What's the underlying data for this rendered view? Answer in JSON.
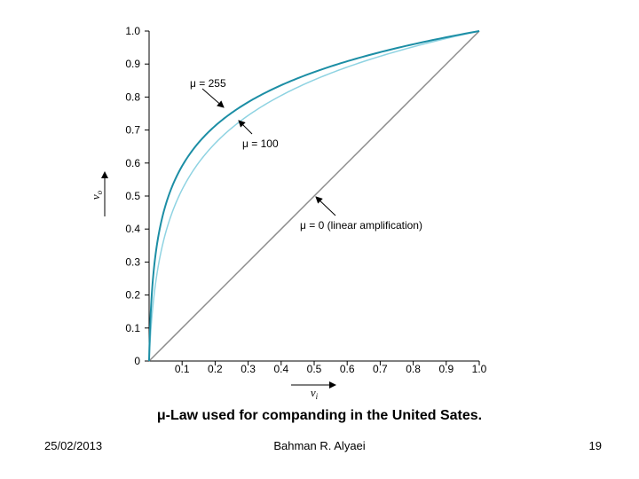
{
  "chart_data": {
    "type": "line",
    "xlabel": "v_i",
    "ylabel": "v_o",
    "xlim": [
      0,
      1
    ],
    "ylim": [
      0,
      1
    ],
    "x_ticks": [
      "0.1",
      "0.2",
      "0.3",
      "0.4",
      "0.5",
      "0.6",
      "0.7",
      "0.8",
      "0.9",
      "1.0"
    ],
    "y_ticks": [
      "0",
      "0.1",
      "0.2",
      "0.3",
      "0.4",
      "0.5",
      "0.6",
      "0.7",
      "0.8",
      "0.9",
      "1.0"
    ],
    "grid": false,
    "series": [
      {
        "name": "μ = 255",
        "mu": 255,
        "color": "#1c8ea5",
        "x": [
          0,
          0.02,
          0.05,
          0.1,
          0.2,
          0.3,
          0.4,
          0.5,
          0.6,
          0.7,
          0.8,
          0.9,
          1.0
        ],
        "y": [
          0,
          0.29,
          0.45,
          0.59,
          0.71,
          0.78,
          0.84,
          0.88,
          0.91,
          0.94,
          0.96,
          0.98,
          1.0
        ]
      },
      {
        "name": "μ = 100",
        "mu": 100,
        "color": "#8fd3e2",
        "x": [
          0,
          0.02,
          0.05,
          0.1,
          0.2,
          0.3,
          0.4,
          0.5,
          0.6,
          0.7,
          0.8,
          0.9,
          1.0
        ],
        "y": [
          0,
          0.23,
          0.38,
          0.52,
          0.66,
          0.74,
          0.81,
          0.85,
          0.89,
          0.93,
          0.96,
          0.98,
          1.0
        ]
      },
      {
        "name": "μ = 0 (linear amplification)",
        "mu": 0,
        "color": "#8c8c8c",
        "x": [
          0,
          1.0
        ],
        "y": [
          0,
          1.0
        ]
      }
    ],
    "annotations": [
      {
        "text": "μ = 255"
      },
      {
        "text": "μ = 100"
      },
      {
        "text": "μ = 0 (linear amplification)"
      }
    ]
  },
  "caption": "μ-Law used for companding in the United Sates.",
  "footer": {
    "date": "25/02/2013",
    "author": "Bahman R. Alyaei",
    "page": "19"
  }
}
